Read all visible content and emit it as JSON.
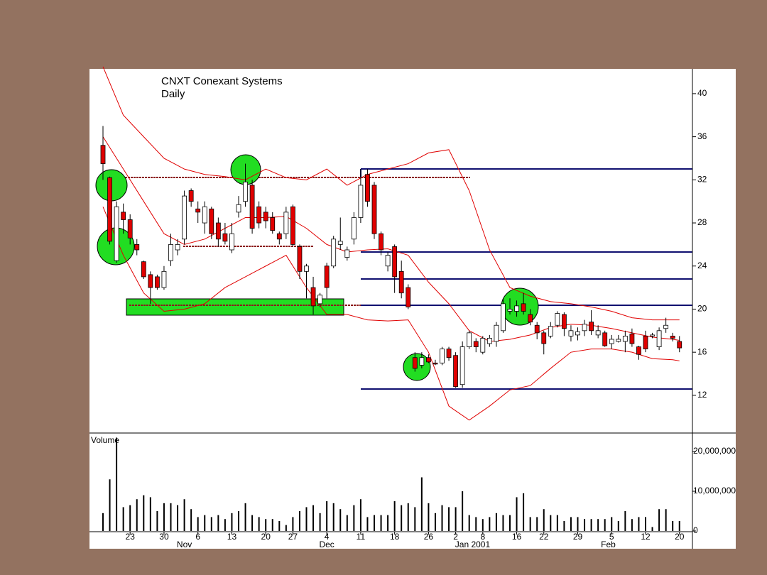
{
  "chart_data": {
    "type": "candlestick",
    "title": "CNXT Conexant Systems",
    "subtitle": "Daily",
    "categories": [
      null,
      null,
      null,
      null,
      "23",
      null,
      null,
      null,
      null,
      "30",
      null,
      null,
      null,
      null,
      "6",
      null,
      null,
      null,
      null,
      "13",
      null,
      null,
      null,
      null,
      "20",
      null,
      null,
      null,
      "27",
      null,
      null,
      null,
      null,
      "4",
      null,
      null,
      null,
      null,
      "11",
      null,
      null,
      null,
      null,
      "18",
      null,
      null,
      null,
      null,
      "26",
      null,
      null,
      null,
      "2",
      null,
      null,
      null,
      "8",
      null,
      null,
      null,
      null,
      "16",
      null,
      null,
      null,
      "22",
      null,
      null,
      null,
      null,
      "29",
      null,
      null,
      null,
      null,
      "5",
      null,
      null,
      null,
      null,
      "12",
      null,
      null,
      null,
      null,
      "20"
    ],
    "month_labels": [
      {
        "value": 12,
        "label": "Nov"
      },
      {
        "value": 33,
        "label": "Dec"
      },
      {
        "value": 54.5,
        "label": "Jan 2001"
      },
      {
        "value": 74.5,
        "label": "Feb"
      }
    ],
    "open": [
      35.2,
      32.2,
      24.5,
      29,
      28.3,
      26,
      24.4,
      23.2,
      23,
      22,
      24.5,
      25.5,
      26.5,
      31,
      29.3,
      28,
      29.3,
      28,
      27,
      25.5,
      29,
      30,
      31.5,
      29.5,
      29,
      28.5,
      27,
      27,
      29.5,
      25.8,
      23.5,
      22,
      20.5,
      24,
      24,
      26,
      24.8,
      26.5,
      28.5,
      32.5,
      31.5,
      27,
      24,
      25.8,
      23.5,
      22,
      15.5,
      14.8,
      15.5,
      15,
      15,
      16.3,
      15.7,
      13,
      16.5,
      17,
      16,
      16.8,
      17,
      18,
      19.8,
      19.8,
      20.5,
      19.5,
      18.5,
      17.8,
      17.5,
      18.5,
      19.5,
      17.5,
      17.6,
      18,
      18.8,
      17.6,
      17.8,
      16.8,
      17,
      17,
      17.7,
      16.5,
      17.5,
      17.5,
      16.5,
      18.2,
      17.5,
      17
    ],
    "high": [
      37,
      32.3,
      30,
      29.8,
      28.8,
      26.5,
      24.5,
      23.5,
      23.2,
      24,
      27,
      26.5,
      31,
      31.2,
      30,
      30,
      29.5,
      28.5,
      28,
      28,
      30.5,
      33.5,
      32,
      30,
      29.5,
      29,
      27.2,
      29.5,
      29.7,
      26,
      24.2,
      23,
      21.5,
      24.3,
      26.8,
      28.5,
      25.8,
      29,
      33,
      33,
      31.8,
      27.2,
      25.3,
      26,
      24.5,
      22.3,
      16,
      16,
      15.8,
      15.3,
      16.5,
      16.5,
      16,
      17,
      18,
      17.3,
      17.5,
      17.6,
      18.8,
      21,
      21,
      20.8,
      21.5,
      20,
      18.8,
      18,
      18.8,
      19.8,
      19.7,
      18.5,
      18.3,
      19,
      19.9,
      18.5,
      18,
      17.6,
      17.6,
      18,
      18.2,
      16.6,
      18,
      17.8,
      18.3,
      19.2,
      17.8,
      17.5
    ],
    "low": [
      32,
      26,
      24.3,
      27,
      26,
      25,
      22.8,
      20.5,
      21.8,
      21.8,
      24,
      25,
      26,
      29.5,
      28,
      27,
      26.5,
      25.8,
      26,
      25.2,
      28.5,
      29.5,
      27,
      27.5,
      27.5,
      27,
      26,
      26.5,
      25.8,
      22.8,
      21,
      19.5,
      20.2,
      21,
      23.8,
      25.5,
      24.5,
      26,
      28,
      29.5,
      26.5,
      25,
      23.5,
      21.5,
      21,
      20,
      14.2,
      14.5,
      15,
      14.8,
      14.8,
      15.2,
      12.7,
      12.7,
      16.3,
      16,
      15.8,
      16.5,
      16.5,
      17.8,
      19.5,
      19.3,
      19.5,
      18.5,
      17.2,
      15.8,
      17.3,
      18.3,
      17.5,
      17,
      17.1,
      17.5,
      17.6,
      17.3,
      16.5,
      16.3,
      16.9,
      16,
      16.5,
      15.3,
      16,
      17.3,
      16.2,
      17.8,
      17,
      16
    ],
    "close": [
      33.5,
      26.3,
      29.5,
      28.3,
      26.6,
      25.5,
      23,
      22,
      22,
      23.5,
      26,
      26,
      30.5,
      30,
      29,
      29.5,
      27,
      26.5,
      26.3,
      27,
      29.7,
      31.8,
      27.5,
      28,
      28.2,
      27.3,
      26.5,
      29,
      26,
      23.5,
      24,
      20.3,
      21.3,
      22,
      26.5,
      26.3,
      25.5,
      28.5,
      31.5,
      30,
      27,
      25.5,
      25,
      23,
      21.5,
      20.2,
      14.5,
      15.5,
      15.1,
      14.9,
      16.3,
      15.5,
      12.8,
      16.5,
      17.8,
      16.5,
      17.3,
      17.3,
      18.5,
      20.5,
      20,
      20.3,
      19.8,
      18.8,
      17.8,
      16.8,
      18.4,
      19.6,
      18.2,
      18,
      17.9,
      18.6,
      18,
      18,
      16.6,
      17.2,
      17.2,
      17.5,
      16.8,
      15.8,
      16.3,
      17.6,
      18,
      18.5,
      17.3,
      16.4
    ],
    "up_color": "#ffffff",
    "down_color": "#e00000",
    "ylim": [
      8.5,
      42.3
    ],
    "yticks": [
      12,
      16,
      20,
      24,
      28,
      32,
      36,
      40
    ],
    "bands": {
      "color": "#e00000",
      "x": [
        0,
        3,
        6,
        9,
        12,
        15,
        18,
        21,
        24,
        27,
        30,
        33,
        36,
        39,
        42,
        45,
        48,
        51,
        54,
        57,
        60,
        63,
        66,
        69,
        72,
        75,
        78,
        81,
        84,
        85
      ],
      "upper": [
        42.5,
        38,
        36,
        34,
        33,
        32.5,
        32.3,
        32,
        33,
        32.2,
        32,
        33,
        31.5,
        32.5,
        33,
        33.5,
        34.5,
        34.8,
        31,
        25.5,
        22,
        21.2,
        20.7,
        20.5,
        20.2,
        19.8,
        19.2,
        19,
        19,
        19
      ],
      "middle": [
        36,
        33,
        30,
        27,
        26,
        26.5,
        27.5,
        28.5,
        28.5,
        28.6,
        27.5,
        26,
        25.3,
        25.5,
        25.6,
        25,
        22.5,
        20.5,
        18,
        17,
        17.2,
        17.6,
        18.3,
        18.6,
        18.5,
        18.2,
        17.8,
        17.4,
        17.2,
        17.1
      ],
      "lower": [
        29.5,
        25,
        21.5,
        19.8,
        20,
        20.5,
        22,
        23,
        24,
        25,
        22,
        19.5,
        19.5,
        19,
        18.9,
        19,
        16,
        11,
        9.7,
        11,
        12.5,
        12.9,
        14.5,
        16,
        16.3,
        16.3,
        16,
        15.4,
        15.3,
        15.2
      ]
    },
    "volume": {
      "title": "Volume",
      "color": "#000000",
      "ylim": [
        0,
        24300000
      ],
      "yticks": [
        0,
        {
          "value": 10000000,
          "label": "10,000,000"
        },
        {
          "value": 20000000,
          "label": "20,000,000"
        }
      ],
      "values": [
        4500000,
        13000000,
        23500000,
        6000000,
        6500000,
        8000000,
        9000000,
        8500000,
        5000000,
        7000000,
        7000000,
        6500000,
        8000000,
        5500000,
        3500000,
        4000000,
        3500000,
        4000000,
        3000000,
        4500000,
        5000000,
        7000000,
        4000000,
        3500000,
        3000000,
        3000000,
        2500000,
        1500000,
        3500000,
        5000000,
        6000000,
        6500000,
        4500000,
        7500000,
        7000000,
        5500000,
        4000000,
        6500000,
        8000000,
        3500000,
        4000000,
        4000000,
        4000000,
        7500000,
        6500000,
        7000000,
        6000000,
        13500000,
        7000000,
        4500000,
        6500000,
        6000000,
        6000000,
        10000000,
        4000000,
        3500000,
        3000000,
        3500000,
        4500000,
        4000000,
        4000000,
        8500000,
        9500000,
        3500000,
        3500000,
        5500000,
        4000000,
        4000000,
        2500000,
        3500000,
        3500000,
        3000000,
        3000000,
        3000000,
        3000000,
        3500000,
        2500000,
        5000000,
        3000000,
        3500000,
        3500000,
        1000000,
        5500000,
        5500000,
        2500000,
        2500000
      ]
    }
  }
}
